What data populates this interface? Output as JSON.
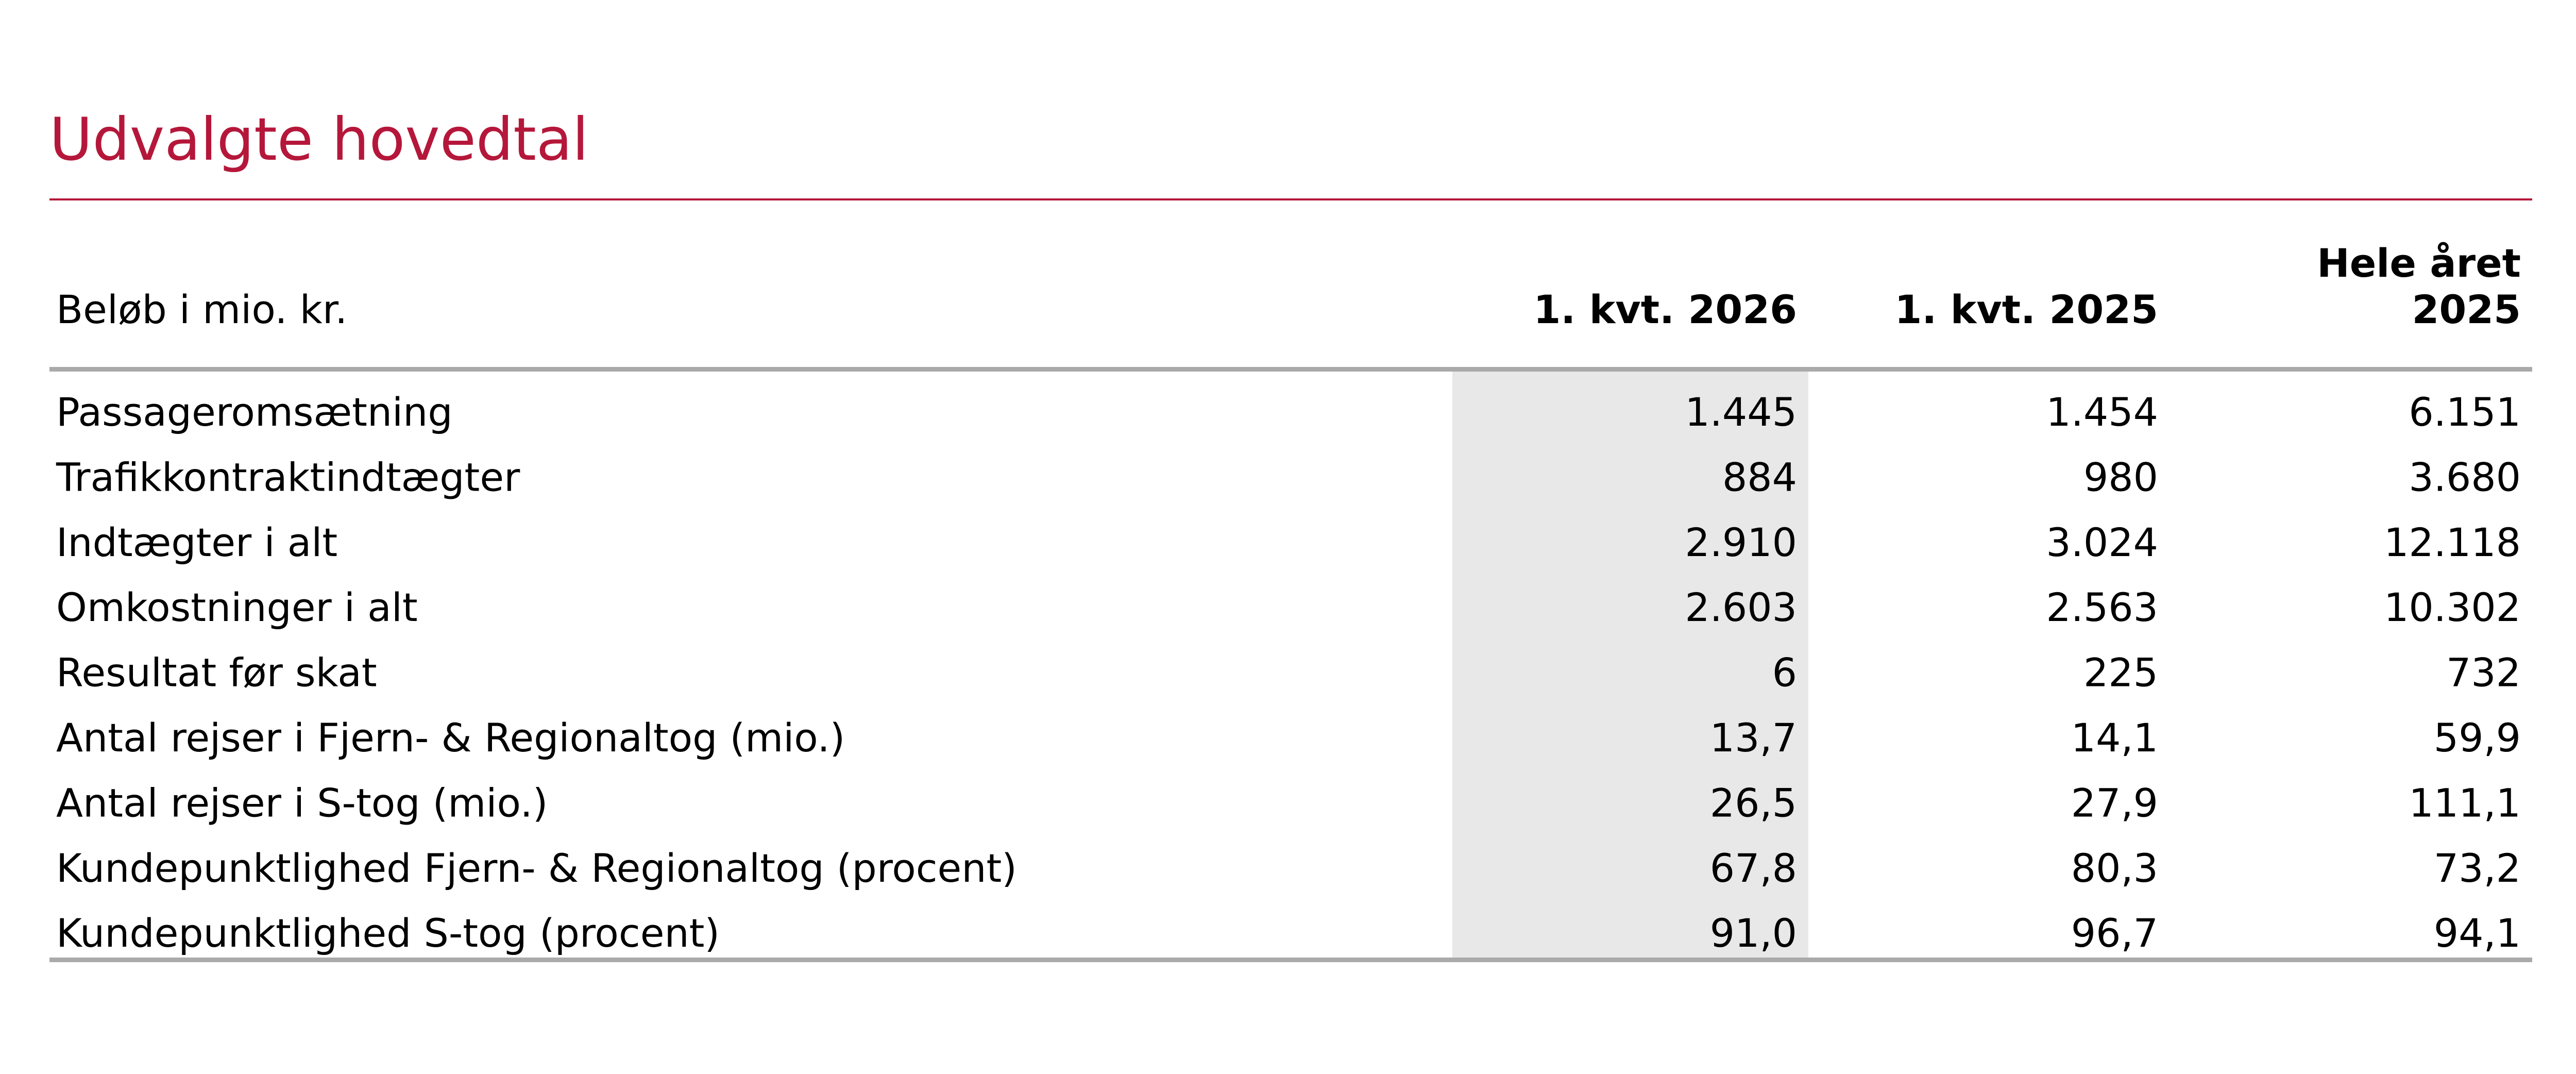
{
  "title": "Udvalgte hovedtal",
  "table": {
    "header": {
      "label": "Beløb i mio. kr.",
      "columns": [
        [
          "1. kvt. 2026"
        ],
        [
          "1. kvt. 2025"
        ],
        [
          "Hele året",
          "2025"
        ]
      ]
    },
    "rows": [
      {
        "label": "Passageromsætning",
        "values": [
          "1.445",
          "1.454",
          "6.151"
        ]
      },
      {
        "label": "Trafikkontraktindtægter",
        "values": [
          "884",
          "980",
          "3.680"
        ]
      },
      {
        "label": "Indtægter i alt",
        "values": [
          "2.910",
          "3.024",
          "12.118"
        ]
      },
      {
        "label": "Omkostninger i alt",
        "values": [
          "2.603",
          "2.563",
          "10.302"
        ]
      },
      {
        "label": "Resultat før skat",
        "values": [
          "6",
          "225",
          "732"
        ]
      },
      {
        "label": "Antal rejser i Fjern- & Regionaltog (mio.)",
        "values": [
          "13,7",
          "14,1",
          "59,9"
        ]
      },
      {
        "label": "Antal rejser i S-tog (mio.)",
        "values": [
          "26,5",
          "27,9",
          "111,1"
        ]
      },
      {
        "label": "Kundepunktlighed Fjern- & Regionaltog (procent)",
        "values": [
          "67,8",
          "80,3",
          "73,2"
        ]
      },
      {
        "label": "Kundepunktlighed S-tog (procent)",
        "values": [
          "91,0",
          "96,7",
          "94,1"
        ]
      }
    ]
  }
}
